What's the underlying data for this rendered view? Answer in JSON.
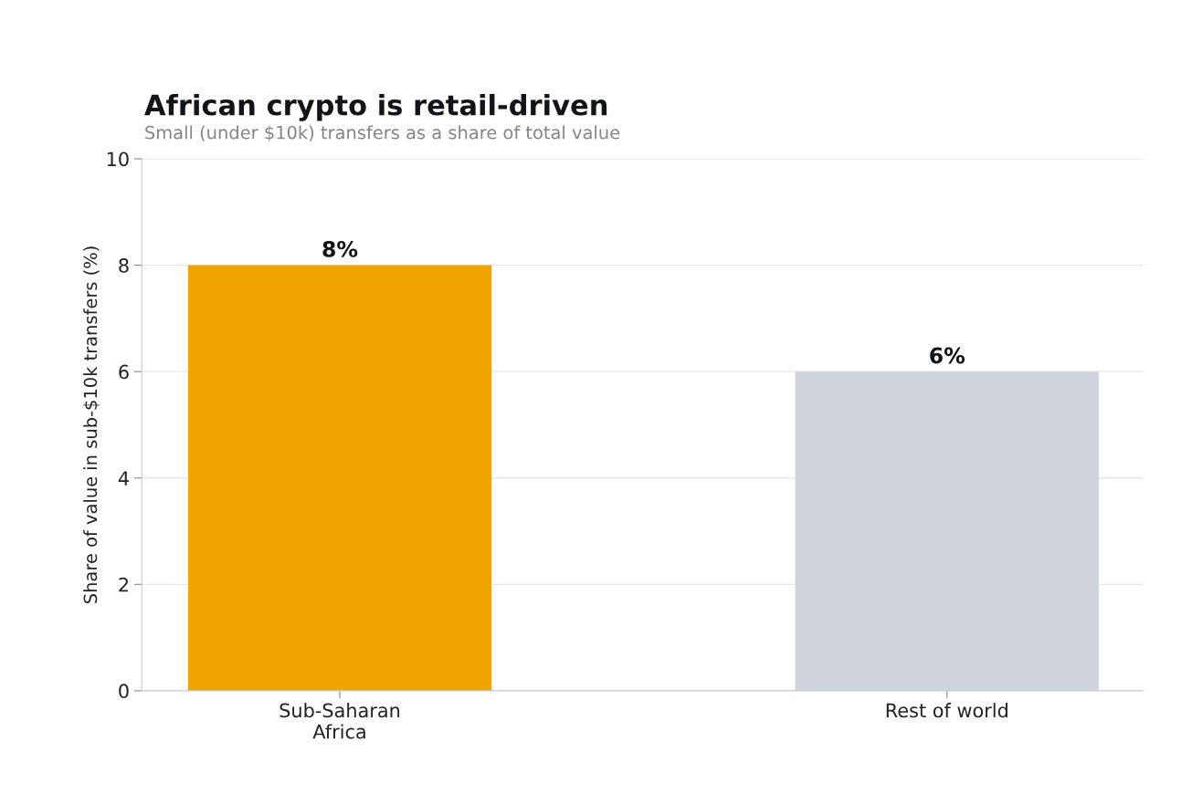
{
  "chart_data": {
    "type": "bar",
    "title": "African crypto is retail-driven",
    "subtitle": "Small (under $10k) transfers as a share of total value",
    "ylabel": "Share of value in sub-$10k transfers (%)",
    "categories": [
      "Sub-Saharan\nAfrica",
      "Rest of world"
    ],
    "values": [
      8,
      6
    ],
    "colors": [
      "#f0a500",
      "#cfd3dc"
    ],
    "value_labels": [
      "8%",
      "6%"
    ],
    "ylim": [
      0,
      10
    ],
    "yticks": [
      0,
      2,
      4,
      6,
      8,
      10
    ],
    "grid": "y"
  }
}
